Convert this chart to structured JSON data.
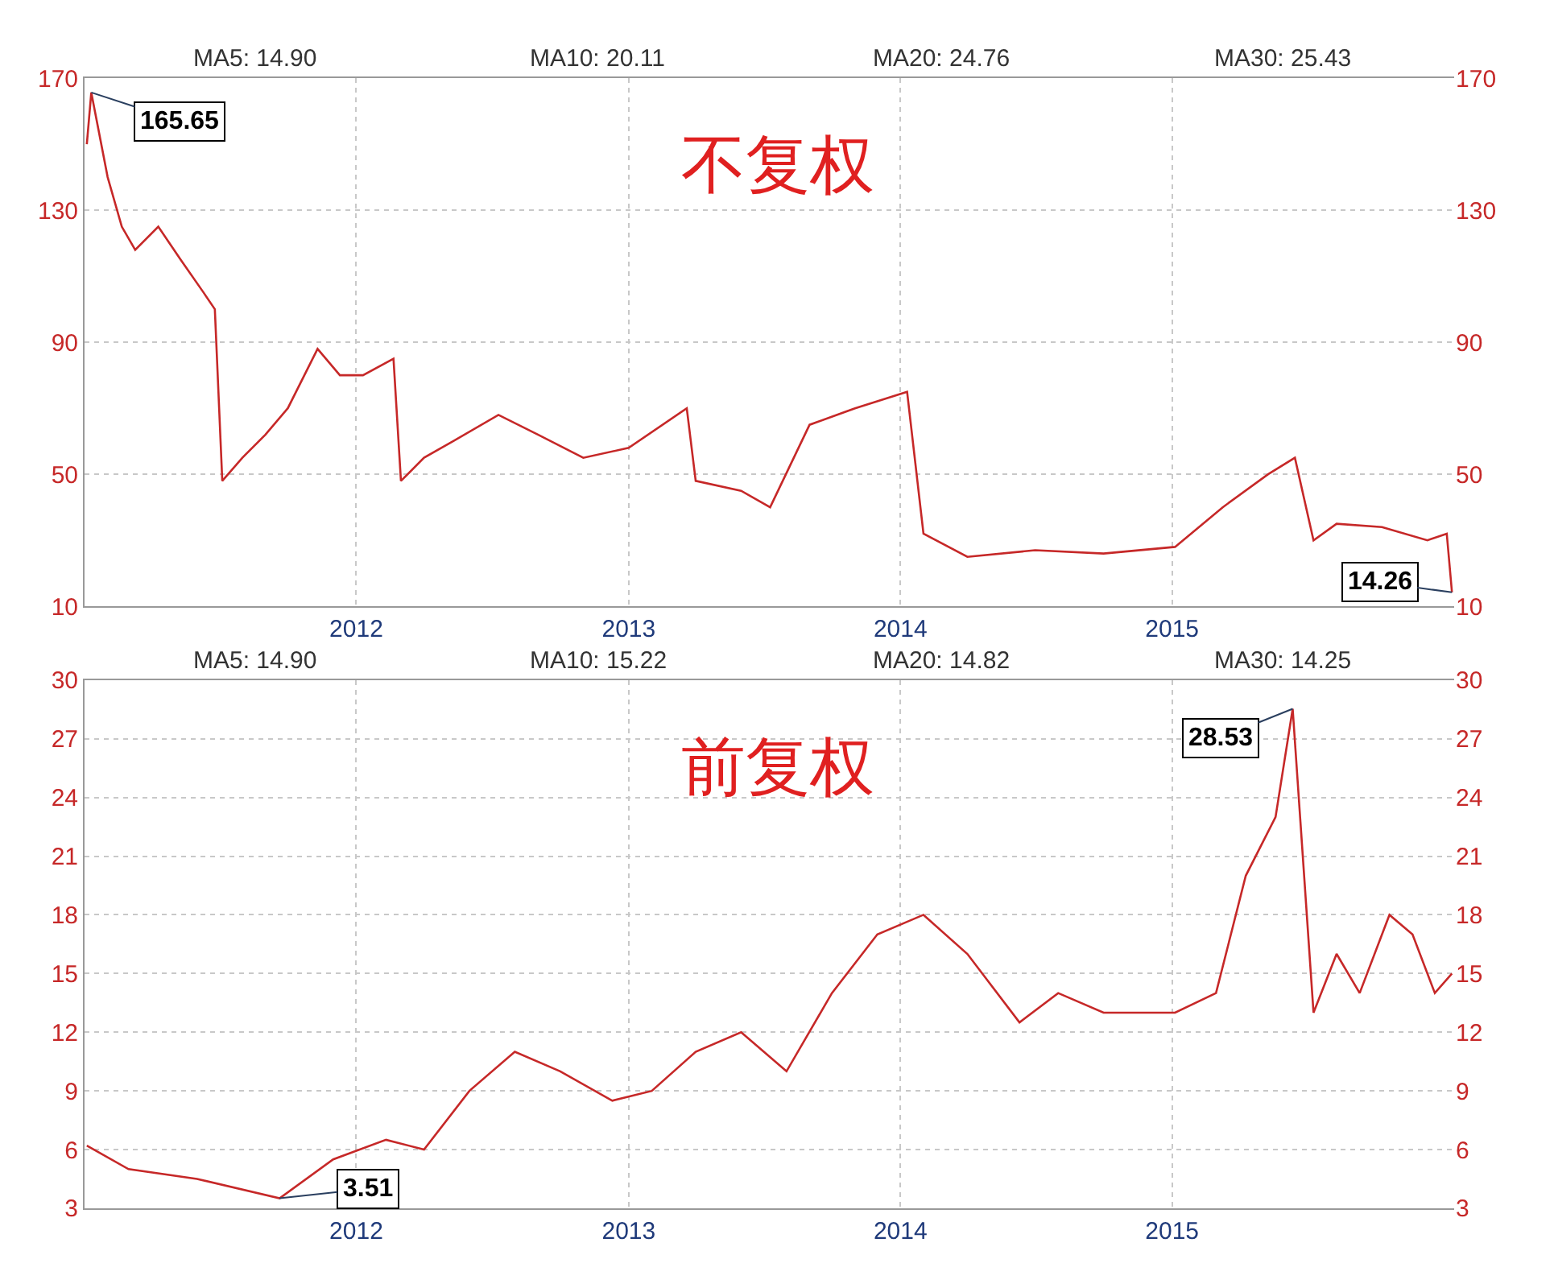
{
  "chart_data": [
    {
      "type": "line",
      "title": "不复权",
      "x": [
        "2011-01-04",
        "2011-01-10",
        "2011-02-01",
        "2011-02-20",
        "2011-03-10",
        "2011-04-10",
        "2011-05-10",
        "2011-06-10",
        "2011-06-25",
        "2011-07-05",
        "2011-08-01",
        "2011-09-01",
        "2011-10-01",
        "2011-11-10",
        "2011-12-10",
        "2012-01-10",
        "2012-02-20",
        "2012-03-01",
        "2012-04-01",
        "2012-05-10",
        "2012-07-10",
        "2012-09-01",
        "2012-11-01",
        "2013-01-01",
        "2013-03-20",
        "2013-04-01",
        "2013-06-01",
        "2013-07-10",
        "2013-09-01",
        "2013-11-01",
        "2014-01-10",
        "2014-02-01",
        "2014-04-01",
        "2014-07-01",
        "2014-10-01",
        "2015-01-05",
        "2015-03-10",
        "2015-05-10",
        "2015-06-15",
        "2015-07-10",
        "2015-08-10",
        "2015-10-10",
        "2015-12-10",
        "2016-01-05",
        "2016-01-12"
      ],
      "series": [
        {
          "color": "#c62828",
          "values": [
            150,
            165.65,
            140,
            125,
            118,
            125,
            115,
            105,
            100,
            48,
            55,
            62,
            70,
            88,
            80,
            80,
            85,
            48,
            55,
            60,
            68,
            62,
            55,
            58,
            70,
            48,
            45,
            40,
            65,
            70,
            75,
            32,
            25,
            27,
            26,
            28,
            40,
            50,
            55,
            30,
            35,
            34,
            30,
            32,
            14.26
          ]
        }
      ],
      "xlim": [
        "2011-01-01",
        "2016-01-15"
      ],
      "xticks": [
        {
          "value": "2012",
          "label": "2012"
        },
        {
          "value": "2013",
          "label": "2013"
        },
        {
          "value": "2014",
          "label": "2014"
        },
        {
          "value": "2015",
          "label": "2015"
        }
      ],
      "ylim": [
        10,
        170
      ],
      "yticks": [
        10,
        50,
        90,
        130,
        170
      ],
      "y2lim": [
        10,
        170
      ],
      "y2ticks": [
        10,
        50,
        90,
        130,
        170
      ],
      "grid": true,
      "annotations": [
        "MA5: 14.90",
        "MA10: 20.11",
        "MA20: 24.76",
        "MA30: 25.43",
        {
          "text": "165.65",
          "x": "2011-01-10",
          "y": 165.65
        },
        {
          "text": "14.26",
          "x": "2016-01-12",
          "y": 14.26
        }
      ]
    },
    {
      "type": "line",
      "title": "前复权",
      "x": [
        "2011-01-04",
        "2011-03-01",
        "2011-06-01",
        "2011-09-20",
        "2011-12-01",
        "2012-02-10",
        "2012-04-01",
        "2012-06-01",
        "2012-08-01",
        "2012-10-01",
        "2012-12-10",
        "2013-02-01",
        "2013-04-01",
        "2013-06-01",
        "2013-08-01",
        "2013-10-01",
        "2013-12-01",
        "2014-02-01",
        "2014-04-01",
        "2014-06-10",
        "2014-08-01",
        "2014-10-01",
        "2015-01-05",
        "2015-03-01",
        "2015-04-10",
        "2015-05-20",
        "2015-06-12",
        "2015-07-10",
        "2015-08-10",
        "2015-09-10",
        "2015-10-20",
        "2015-11-20",
        "2015-12-20",
        "2016-01-12"
      ],
      "series": [
        {
          "color": "#c62828",
          "values": [
            6.2,
            5,
            4.5,
            3.51,
            5.5,
            6.5,
            6,
            9,
            11,
            10,
            8.5,
            9,
            11,
            12,
            10,
            14,
            17,
            18,
            16,
            12.5,
            14,
            13,
            13,
            14,
            20,
            23,
            28.53,
            13,
            16,
            14,
            18,
            17,
            14,
            15
          ]
        }
      ],
      "xlim": [
        "2011-01-01",
        "2016-01-15"
      ],
      "xticks": [
        {
          "value": "2012",
          "label": "2012"
        },
        {
          "value": "2013",
          "label": "2013"
        },
        {
          "value": "2014",
          "label": "2014"
        },
        {
          "value": "2015",
          "label": "2015"
        }
      ],
      "ylim": [
        3,
        30
      ],
      "yticks": [
        3,
        6,
        9,
        12,
        15,
        18,
        21,
        24,
        27,
        30
      ],
      "y2lim": [
        3,
        30
      ],
      "y2ticks": [
        3,
        6,
        9,
        12,
        15,
        18,
        21,
        24,
        27,
        30
      ],
      "grid": true,
      "annotations": [
        "MA5: 14.90",
        "MA10: 15.22",
        "MA20: 14.82",
        "MA30: 14.25",
        {
          "text": "28.53",
          "x": "2015-06-12",
          "y": 28.53
        },
        {
          "text": "3.51",
          "x": "2011-09-20",
          "y": 3.51
        }
      ]
    }
  ]
}
